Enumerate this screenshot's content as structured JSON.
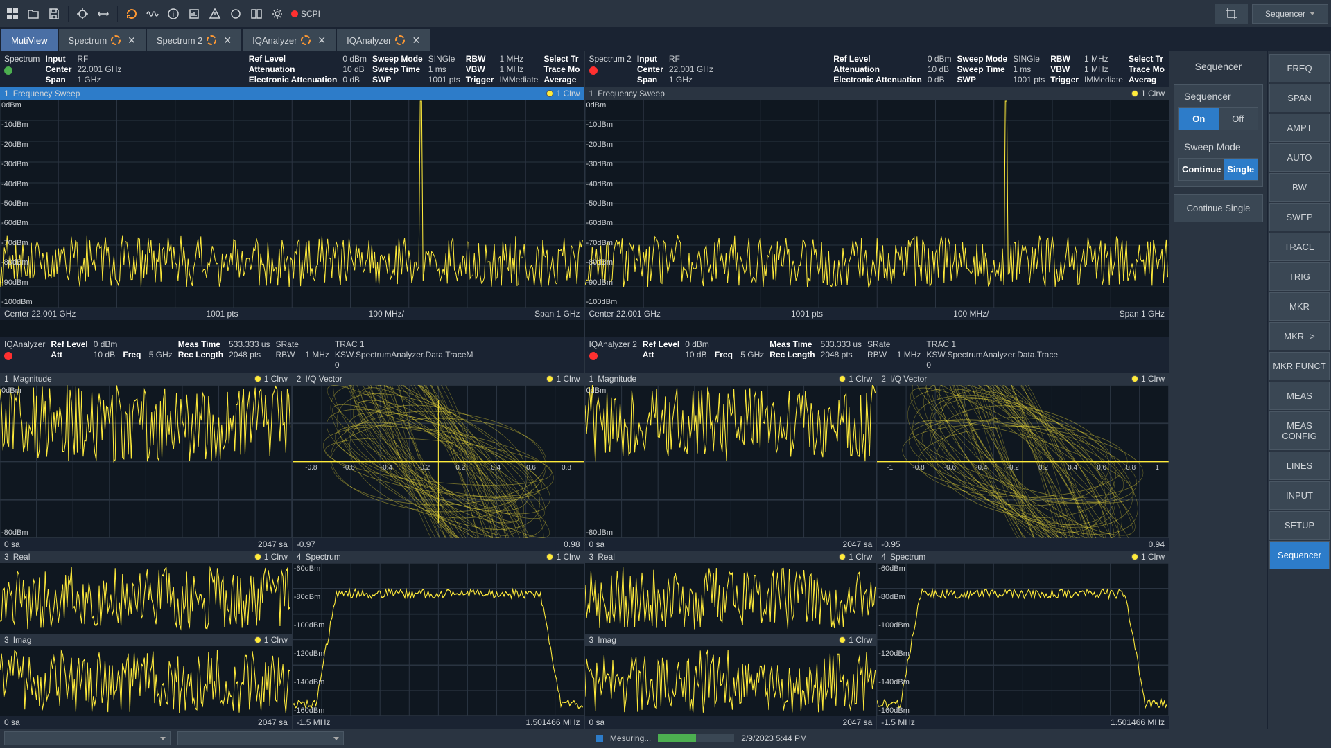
{
  "colors": {
    "trace": "#ffeb3b",
    "grid": "#3a4754",
    "bg": "#0f1720",
    "panel": "#2a3441",
    "accent": "#2d7cc9",
    "green": "#4caf50",
    "red": "#ff3030"
  },
  "toolbar": {
    "scpi_label": "SCPI",
    "sequencer_label": "Sequencer"
  },
  "tabs": [
    {
      "label": "MutiView",
      "active": true,
      "closable": false,
      "spinner": false
    },
    {
      "label": "Spectrum",
      "active": false,
      "closable": true,
      "spinner": true
    },
    {
      "label": "Spectrum 2",
      "active": false,
      "closable": true,
      "spinner": true
    },
    {
      "label": "IQAnalyzer",
      "active": false,
      "closable": true,
      "spinner": true
    },
    {
      "label": "IQAnalyzer",
      "active": false,
      "closable": true,
      "spinner": true
    }
  ],
  "spectrum_panels": [
    {
      "name": "Spectrum",
      "status_color": "#4caf50",
      "hdr": {
        "Input": "RF",
        "Center": "22.001 GHz",
        "Span": "1 GHz",
        "RefLevel": "0 dBm",
        "Attenuation": "10 dB",
        "ElecAtt": "0 dB",
        "SweepMode": "SINGle",
        "SweepTime": "1 ms",
        "SWP": "1001 pts",
        "RBW": "1 MHz",
        "VBW": "1 MHz",
        "Trigger": "IMMediate",
        "SelectTr": "Select Tr",
        "TraceMode": "Trace Mo",
        "Average": "Average"
      },
      "title_bg": "#2d7cc9"
    },
    {
      "name": "Spectrum 2",
      "status_color": "#ff3030",
      "hdr": {
        "Input": "RF",
        "Center": "22.001 GHz",
        "Span": "1 GHz",
        "RefLevel": "0 dBm",
        "Attenuation": "10 dB",
        "ElecAtt": "0 dB",
        "SweepMode": "SINGle",
        "SweepTime": "1 ms",
        "SWP": "1001 pts",
        "RBW": "1 MHz",
        "VBW": "1 MHz",
        "Trigger": "IMMediate",
        "SelectTr": "Select Tr",
        "TraceMode": "Trace Mo",
        "Average": "Averag"
      },
      "title_bg": "#2a3441"
    }
  ],
  "freq_sweep": {
    "title": "Frequency Sweep",
    "num": "1",
    "legend": "1 Clrw",
    "ylabels": [
      "0dBm",
      "-10dBm",
      "-20dBm",
      "-30dBm",
      "-40dBm",
      "-50dBm",
      "-60dBm",
      "-70dBm",
      "-80dBm",
      "-90dBm",
      "-100dBm"
    ],
    "footer": [
      "Center  22.001 GHz",
      "1001 pts",
      "100 MHz/",
      "Span  1 GHz"
    ]
  },
  "iq_panels": [
    {
      "name": "IQAnalyzer",
      "status_color": "#ff3030",
      "hdr": {
        "RefLevel": "0 dBm",
        "Att": "10 dB",
        "Freq": "5 GHz",
        "MeasTime": "533.333 us",
        "RecLength": "2048 pts",
        "SRate": "",
        "RBW": "1 MHz",
        "TRAC": "TRAC 1",
        "TracInfo": "KSW.SpectrumAnalyzer.Data.TraceM",
        "Zero": "0"
      },
      "iq_footer": {
        "min": "-0.97",
        "max": "0.98"
      }
    },
    {
      "name": "IQAnalyzer 2",
      "status_color": "#ff3030",
      "hdr": {
        "RefLevel": "0 dBm",
        "Att": "10 dB",
        "Freq": "5 GHz",
        "MeasTime": "533.333 us",
        "RecLength": "2048 pts",
        "SRate": "",
        "RBW": "1 MHz",
        "TRAC": "TRAC 1",
        "TracInfo": "KSW.SpectrumAnalyzer.Data.Trace",
        "Zero": "0"
      },
      "iq_footer": {
        "min": "-0.95",
        "max": "0.94"
      }
    }
  ],
  "iq_sub": {
    "mag": {
      "num": "1",
      "title": "Magnitude",
      "legend": "1 Clrw",
      "ylabels": [
        "0dBm",
        "-80dBm"
      ],
      "footer": [
        "0 sa",
        "2047 sa"
      ]
    },
    "iqvec": {
      "num": "2",
      "title": "I/Q Vector",
      "legend": "1 Clrw",
      "xticks": [
        "-0.8",
        "-0.6",
        "-0.4",
        "-0.2",
        "0.2",
        "0.4",
        "0.6",
        "0.8"
      ]
    },
    "real": {
      "num": "3",
      "title": "Real",
      "legend": "1 Clrw"
    },
    "imag": {
      "num": "3",
      "title": "Imag",
      "legend": "1 Clrw",
      "footer": [
        "0 sa",
        "2047 sa"
      ]
    },
    "spec": {
      "num": "4",
      "title": "Spectrum",
      "legend": "1 Clrw",
      "ylabels": [
        "-60dBm",
        "-80dBm",
        "-100dBm",
        "-120dBm",
        "-140dBm",
        "-160dBm"
      ],
      "footer": [
        "-1.5 MHz",
        "1.501466 MHz"
      ]
    }
  },
  "iq_xticks2": [
    "-1",
    "-0.8",
    "-0.6",
    "-0.4",
    "-0.2",
    "0.2",
    "0.4",
    "0.6",
    "0.8",
    "1"
  ],
  "side1": {
    "title": "Sequencer",
    "sequencer": "Sequencer",
    "on": "On",
    "off": "Off",
    "sweep_mode": "Sweep Mode",
    "continue": "Continue",
    "single": "Single",
    "continue_single": "Continue Single"
  },
  "side2": [
    "FREQ",
    "SPAN",
    "AMPT",
    "AUTO",
    "BW",
    "SWEP",
    "TRACE",
    "TRIG",
    "MKR",
    "MKR ->",
    "MKR FUNCT",
    "MEAS",
    "MEAS CONFIG",
    "LINES",
    "INPUT",
    "SETUP",
    "Sequencer"
  ],
  "status": {
    "measuring": "Mesuring...",
    "progress": 0.5,
    "datetime": "2/9/2023 5:44 PM"
  }
}
